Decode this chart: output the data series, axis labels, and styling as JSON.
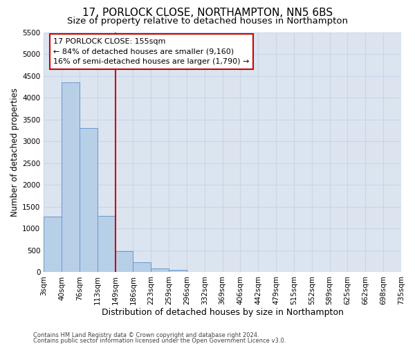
{
  "title": "17, PORLOCK CLOSE, NORTHAMPTON, NN5 6BS",
  "subtitle": "Size of property relative to detached houses in Northampton",
  "xlabel": "Distribution of detached houses by size in Northampton",
  "ylabel": "Number of detached properties",
  "footer_line1": "Contains HM Land Registry data © Crown copyright and database right 2024.",
  "footer_line2": "Contains public sector information licensed under the Open Government Licence v3.0.",
  "categories": [
    "3sqm",
    "40sqm",
    "76sqm",
    "113sqm",
    "149sqm",
    "186sqm",
    "223sqm",
    "259sqm",
    "296sqm",
    "332sqm",
    "369sqm",
    "406sqm",
    "442sqm",
    "479sqm",
    "515sqm",
    "552sqm",
    "589sqm",
    "625sqm",
    "662sqm",
    "698sqm",
    "735sqm"
  ],
  "bar_values": [
    1270,
    4350,
    3300,
    1290,
    480,
    230,
    90,
    60,
    0,
    0,
    0,
    0,
    0,
    0,
    0,
    0,
    0,
    0,
    0,
    0
  ],
  "bar_color": "#b8cfe8",
  "bar_edge_color": "#6699cc",
  "annotation_line1": "17 PORLOCK CLOSE: 155sqm",
  "annotation_line2": "← 84% of detached houses are smaller (9,160)",
  "annotation_line3": "16% of semi-detached houses are larger (1,790) →",
  "annotation_box_color": "#cc0000",
  "vline_color": "#cc0000",
  "vline_x_index": 4,
  "ylim": [
    0,
    5500
  ],
  "yticks": [
    0,
    500,
    1000,
    1500,
    2000,
    2500,
    3000,
    3500,
    4000,
    4500,
    5000,
    5500
  ],
  "grid_color": "#c8d4e8",
  "bg_color": "#dce4f0",
  "title_fontsize": 11,
  "subtitle_fontsize": 9.5,
  "xlabel_fontsize": 9,
  "ylabel_fontsize": 8.5,
  "tick_fontsize": 7.5,
  "footer_fontsize": 6,
  "annotation_fontsize": 8
}
